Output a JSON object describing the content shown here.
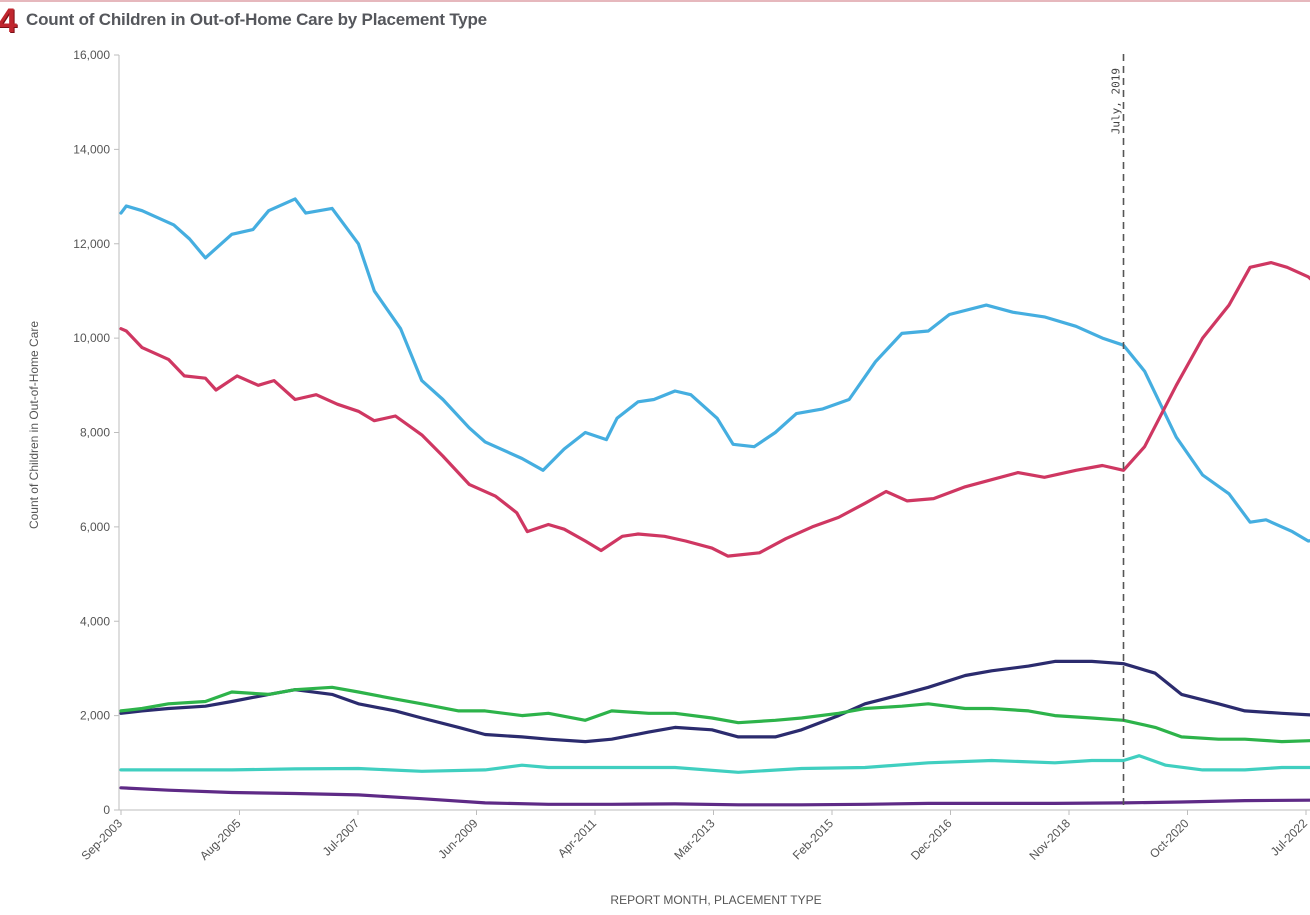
{
  "header": {
    "step_number": "4",
    "title": "Count of Children in Out-of-Home Care by Placement Type"
  },
  "chart_data": {
    "type": "line",
    "title": "Count of Children in Out-of-Home Care by Placement Type",
    "xlabel": "REPORT MONTH, PLACEMENT TYPE",
    "ylabel": "Count of Children in Out-of-Home Care",
    "x_tick_labels": [
      "Sep-2003",
      "Aug-2005",
      "Jul-2007",
      "Jun-2009",
      "Apr-2011",
      "Mar-2013",
      "Feb-2015",
      "Dec-2016",
      "Nov-2018",
      "Oct-2020",
      "Jul-2022"
    ],
    "y_ticks": [
      0,
      2000,
      4000,
      6000,
      8000,
      10000,
      12000,
      14000,
      16000
    ],
    "y_tick_labels": [
      "0",
      "2,000",
      "4,000",
      "6,000",
      "8,000",
      "10,000",
      "12,000",
      "14,000",
      "16,000"
    ],
    "xlim": [
      "2003-09",
      "2022-09"
    ],
    "ylim": [
      0,
      16000
    ],
    "grid": false,
    "legend": "none",
    "annotation": {
      "label": "July, 2019",
      "date": "2019-07",
      "style": "dashed-vertical-line"
    },
    "series": [
      {
        "color": "#45aee0",
        "points": [
          [
            "2003-09",
            12650
          ],
          [
            "2003-10",
            12800
          ],
          [
            "2004-01",
            12700
          ],
          [
            "2004-07",
            12400
          ],
          [
            "2004-10",
            12100
          ],
          [
            "2005-01",
            11700
          ],
          [
            "2005-06",
            12200
          ],
          [
            "2005-10",
            12300
          ],
          [
            "2006-01",
            12700
          ],
          [
            "2006-06",
            12950
          ],
          [
            "2006-08",
            12650
          ],
          [
            "2007-01",
            12750
          ],
          [
            "2007-06",
            12000
          ],
          [
            "2007-09",
            11000
          ],
          [
            "2008-02",
            10200
          ],
          [
            "2008-06",
            9100
          ],
          [
            "2008-10",
            8700
          ],
          [
            "2009-03",
            8100
          ],
          [
            "2009-06",
            7800
          ],
          [
            "2010-01",
            7450
          ],
          [
            "2010-05",
            7200
          ],
          [
            "2010-09",
            7650
          ],
          [
            "2011-01",
            8000
          ],
          [
            "2011-05",
            7850
          ],
          [
            "2011-07",
            8300
          ],
          [
            "2011-11",
            8650
          ],
          [
            "2012-02",
            8700
          ],
          [
            "2012-06",
            8880
          ],
          [
            "2012-09",
            8800
          ],
          [
            "2013-02",
            8300
          ],
          [
            "2013-05",
            7750
          ],
          [
            "2013-09",
            7700
          ],
          [
            "2014-01",
            8000
          ],
          [
            "2014-05",
            8400
          ],
          [
            "2014-10",
            8500
          ],
          [
            "2015-03",
            8700
          ],
          [
            "2015-08",
            9500
          ],
          [
            "2016-01",
            10100
          ],
          [
            "2016-06",
            10150
          ],
          [
            "2016-10",
            10500
          ],
          [
            "2017-05",
            10700
          ],
          [
            "2017-10",
            10550
          ],
          [
            "2018-04",
            10450
          ],
          [
            "2018-10",
            10250
          ],
          [
            "2019-03",
            10000
          ],
          [
            "2019-07",
            9850
          ],
          [
            "2019-11",
            9300
          ],
          [
            "2020-05",
            7900
          ],
          [
            "2020-10",
            7100
          ],
          [
            "2021-03",
            6700
          ],
          [
            "2021-07",
            6100
          ],
          [
            "2021-10",
            6150
          ],
          [
            "2022-03",
            5900
          ],
          [
            "2022-06",
            5700
          ],
          [
            "2022-09",
            5750
          ]
        ]
      },
      {
        "color": "#cf3762",
        "points": [
          [
            "2003-09",
            10200
          ],
          [
            "2003-10",
            10150
          ],
          [
            "2004-01",
            9800
          ],
          [
            "2004-06",
            9550
          ],
          [
            "2004-09",
            9200
          ],
          [
            "2005-01",
            9150
          ],
          [
            "2005-03",
            8900
          ],
          [
            "2005-07",
            9200
          ],
          [
            "2005-11",
            9000
          ],
          [
            "2006-02",
            9100
          ],
          [
            "2006-06",
            8700
          ],
          [
            "2006-10",
            8800
          ],
          [
            "2007-02",
            8600
          ],
          [
            "2007-06",
            8450
          ],
          [
            "2007-09",
            8250
          ],
          [
            "2008-01",
            8350
          ],
          [
            "2008-06",
            7950
          ],
          [
            "2008-10",
            7500
          ],
          [
            "2009-03",
            6900
          ],
          [
            "2009-08",
            6650
          ],
          [
            "2009-12",
            6300
          ],
          [
            "2010-02",
            5900
          ],
          [
            "2010-06",
            6050
          ],
          [
            "2010-09",
            5950
          ],
          [
            "2011-01",
            5700
          ],
          [
            "2011-04",
            5500
          ],
          [
            "2011-08",
            5800
          ],
          [
            "2011-11",
            5850
          ],
          [
            "2012-04",
            5800
          ],
          [
            "2012-08",
            5700
          ],
          [
            "2013-01",
            5550
          ],
          [
            "2013-04",
            5380
          ],
          [
            "2013-10",
            5450
          ],
          [
            "2014-03",
            5750
          ],
          [
            "2014-08",
            6000
          ],
          [
            "2015-01",
            6200
          ],
          [
            "2015-06",
            6500
          ],
          [
            "2015-10",
            6750
          ],
          [
            "2016-02",
            6550
          ],
          [
            "2016-07",
            6600
          ],
          [
            "2017-01",
            6850
          ],
          [
            "2017-06",
            7000
          ],
          [
            "2017-11",
            7150
          ],
          [
            "2018-04",
            7050
          ],
          [
            "2018-10",
            7200
          ],
          [
            "2019-03",
            7300
          ],
          [
            "2019-07",
            7200
          ],
          [
            "2019-11",
            7700
          ],
          [
            "2020-05",
            9000
          ],
          [
            "2020-10",
            10000
          ],
          [
            "2021-03",
            10700
          ],
          [
            "2021-07",
            11500
          ],
          [
            "2021-11",
            11600
          ],
          [
            "2022-02",
            11500
          ],
          [
            "2022-06",
            11300
          ],
          [
            "2022-09",
            11000
          ]
        ]
      },
      {
        "color": "#2b2b6e",
        "points": [
          [
            "2003-09",
            2050
          ],
          [
            "2004-01",
            2100
          ],
          [
            "2004-06",
            2150
          ],
          [
            "2005-01",
            2200
          ],
          [
            "2005-06",
            2300
          ],
          [
            "2006-01",
            2450
          ],
          [
            "2006-06",
            2550
          ],
          [
            "2007-01",
            2450
          ],
          [
            "2007-06",
            2250
          ],
          [
            "2008-01",
            2100
          ],
          [
            "2008-06",
            1950
          ],
          [
            "2009-01",
            1750
          ],
          [
            "2009-06",
            1600
          ],
          [
            "2010-01",
            1550
          ],
          [
            "2010-06",
            1500
          ],
          [
            "2011-01",
            1450
          ],
          [
            "2011-06",
            1500
          ],
          [
            "2012-01",
            1650
          ],
          [
            "2012-06",
            1750
          ],
          [
            "2013-01",
            1700
          ],
          [
            "2013-06",
            1550
          ],
          [
            "2014-01",
            1550
          ],
          [
            "2014-06",
            1700
          ],
          [
            "2015-01",
            2000
          ],
          [
            "2015-06",
            2250
          ],
          [
            "2016-01",
            2450
          ],
          [
            "2016-06",
            2600
          ],
          [
            "2017-01",
            2850
          ],
          [
            "2017-06",
            2950
          ],
          [
            "2018-01",
            3050
          ],
          [
            "2018-06",
            3150
          ],
          [
            "2019-01",
            3150
          ],
          [
            "2019-07",
            3100
          ],
          [
            "2020-01",
            2900
          ],
          [
            "2020-06",
            2450
          ],
          [
            "2021-01",
            2250
          ],
          [
            "2021-06",
            2100
          ],
          [
            "2022-01",
            2050
          ],
          [
            "2022-09",
            2000
          ]
        ]
      },
      {
        "color": "#2db34a",
        "points": [
          [
            "2003-09",
            2100
          ],
          [
            "2004-01",
            2150
          ],
          [
            "2004-06",
            2250
          ],
          [
            "2005-01",
            2300
          ],
          [
            "2005-06",
            2500
          ],
          [
            "2006-01",
            2450
          ],
          [
            "2006-06",
            2550
          ],
          [
            "2007-01",
            2600
          ],
          [
            "2007-06",
            2500
          ],
          [
            "2008-01",
            2350
          ],
          [
            "2008-06",
            2250
          ],
          [
            "2009-01",
            2100
          ],
          [
            "2009-06",
            2100
          ],
          [
            "2010-01",
            2000
          ],
          [
            "2010-06",
            2050
          ],
          [
            "2011-01",
            1900
          ],
          [
            "2011-06",
            2100
          ],
          [
            "2012-01",
            2050
          ],
          [
            "2012-06",
            2050
          ],
          [
            "2013-01",
            1950
          ],
          [
            "2013-06",
            1850
          ],
          [
            "2014-01",
            1900
          ],
          [
            "2014-06",
            1950
          ],
          [
            "2015-01",
            2050
          ],
          [
            "2015-06",
            2150
          ],
          [
            "2016-01",
            2200
          ],
          [
            "2016-06",
            2250
          ],
          [
            "2017-01",
            2150
          ],
          [
            "2017-06",
            2150
          ],
          [
            "2018-01",
            2100
          ],
          [
            "2018-06",
            2000
          ],
          [
            "2019-01",
            1950
          ],
          [
            "2019-07",
            1900
          ],
          [
            "2020-01",
            1750
          ],
          [
            "2020-06",
            1550
          ],
          [
            "2021-01",
            1500
          ],
          [
            "2021-06",
            1500
          ],
          [
            "2022-01",
            1450
          ],
          [
            "2022-09",
            1480
          ]
        ]
      },
      {
        "color": "#40cfc0",
        "points": [
          [
            "2003-09",
            850
          ],
          [
            "2004-06",
            850
          ],
          [
            "2005-06",
            850
          ],
          [
            "2006-06",
            870
          ],
          [
            "2007-06",
            880
          ],
          [
            "2008-06",
            820
          ],
          [
            "2009-06",
            850
          ],
          [
            "2010-01",
            950
          ],
          [
            "2010-06",
            900
          ],
          [
            "2011-06",
            900
          ],
          [
            "2012-06",
            900
          ],
          [
            "2013-06",
            800
          ],
          [
            "2014-06",
            880
          ],
          [
            "2015-06",
            900
          ],
          [
            "2016-06",
            1000
          ],
          [
            "2017-06",
            1050
          ],
          [
            "2018-06",
            1000
          ],
          [
            "2019-01",
            1050
          ],
          [
            "2019-07",
            1050
          ],
          [
            "2019-10",
            1150
          ],
          [
            "2020-03",
            950
          ],
          [
            "2020-10",
            850
          ],
          [
            "2021-06",
            850
          ],
          [
            "2022-01",
            900
          ],
          [
            "2022-09",
            900
          ]
        ]
      },
      {
        "color": "#5e2a86",
        "points": [
          [
            "2003-09",
            470
          ],
          [
            "2004-06",
            420
          ],
          [
            "2005-06",
            370
          ],
          [
            "2006-06",
            350
          ],
          [
            "2007-06",
            320
          ],
          [
            "2008-06",
            240
          ],
          [
            "2009-06",
            150
          ],
          [
            "2010-06",
            120
          ],
          [
            "2011-06",
            120
          ],
          [
            "2012-06",
            130
          ],
          [
            "2013-06",
            110
          ],
          [
            "2014-06",
            110
          ],
          [
            "2015-06",
            120
          ],
          [
            "2016-06",
            140
          ],
          [
            "2017-06",
            140
          ],
          [
            "2018-06",
            140
          ],
          [
            "2019-07",
            150
          ],
          [
            "2020-06",
            170
          ],
          [
            "2021-06",
            200
          ],
          [
            "2022-09",
            210
          ]
        ]
      }
    ]
  }
}
